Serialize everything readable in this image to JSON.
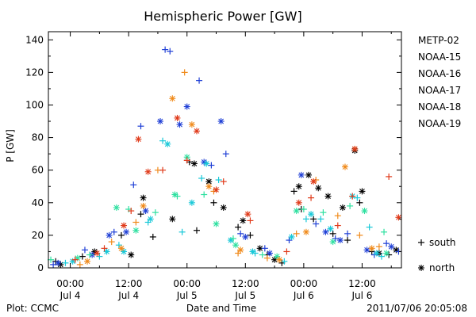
{
  "chart_data": {
    "type": "scatter",
    "title": "Hemispheric Power [GW]",
    "ylabel": "P [GW]",
    "xlabel": "Date and Time",
    "ylim": [
      0,
      145
    ],
    "yticks": [
      0,
      20,
      40,
      60,
      80,
      100,
      120,
      140
    ],
    "xlim": [
      "2011-07-03 19:30",
      "2011-07-06 20:05"
    ],
    "xtick_labels": [
      {
        "time": "00:00",
        "date": "Jul 4",
        "x": "2011-07-04 00:00"
      },
      {
        "time": "12:00",
        "date": "Jul 4",
        "x": "2011-07-04 12:00"
      },
      {
        "time": "00:00",
        "date": "Jul 5",
        "x": "2011-07-05 00:00"
      },
      {
        "time": "12:00",
        "date": "Jul 5",
        "x": "2011-07-05 12:00"
      },
      {
        "time": "00:00",
        "date": "Jul 6",
        "x": "2011-07-06 00:00"
      },
      {
        "time": "12:00",
        "date": "Jul 6",
        "x": "2011-07-06 12:00"
      }
    ],
    "legend": {
      "placement": "right",
      "entries": [
        {
          "name": "METP-02",
          "color": "#000000"
        },
        {
          "name": "NOAA-15",
          "color": "#1f3fd6"
        },
        {
          "name": "NOAA-16",
          "color": "#18c8d8"
        },
        {
          "name": "NOAA-17",
          "color": "#2ee0a0"
        },
        {
          "name": "NOAA-18",
          "color": "#f08a1a"
        },
        {
          "name": "NOAA-19",
          "color": "#e03a1a"
        }
      ],
      "markers": [
        {
          "symbol": "+",
          "label": "south"
        },
        {
          "symbol": "*",
          "label": "north"
        }
      ]
    },
    "series": [
      {
        "name": "METP-02",
        "color": "#000000",
        "marker": "+",
        "hemisphere": "south",
        "points": [
          [
            "2011-07-03 21:00",
            4
          ],
          [
            "2011-07-04 02:30",
            7
          ],
          [
            "2011-07-04 10:30",
            20
          ],
          [
            "2011-07-04 14:30",
            33
          ],
          [
            "2011-07-04 17:00",
            19
          ],
          [
            "2011-07-05 00:30",
            65
          ],
          [
            "2011-07-05 02:00",
            23
          ],
          [
            "2011-07-05 05:30",
            40
          ],
          [
            "2011-07-05 10:30",
            25
          ],
          [
            "2011-07-05 13:00",
            20
          ],
          [
            "2011-07-05 16:30",
            8
          ],
          [
            "2011-07-05 19:30",
            3
          ],
          [
            "2011-07-05 22:00",
            47
          ],
          [
            "2011-07-05 23:30",
            36
          ],
          [
            "2011-07-06 02:00",
            30
          ],
          [
            "2011-07-06 06:00",
            21
          ],
          [
            "2011-07-06 09:00",
            17
          ],
          [
            "2011-07-06 11:30",
            40
          ],
          [
            "2011-07-06 14:00",
            10
          ],
          [
            "2011-07-06 17:30",
            8
          ]
        ]
      },
      {
        "name": "METP-02",
        "color": "#000000",
        "marker": "*",
        "hemisphere": "north",
        "points": [
          [
            "2011-07-03 22:00",
            2
          ],
          [
            "2011-07-04 05:00",
            10
          ],
          [
            "2011-07-04 12:30",
            8
          ],
          [
            "2011-07-04 15:00",
            43
          ],
          [
            "2011-07-04 21:00",
            30
          ],
          [
            "2011-07-05 01:30",
            64
          ],
          [
            "2011-07-05 04:30",
            53
          ],
          [
            "2011-07-05 07:30",
            37
          ],
          [
            "2011-07-05 11:30",
            29
          ],
          [
            "2011-07-05 15:00",
            12
          ],
          [
            "2011-07-05 18:00",
            5
          ],
          [
            "2011-07-05 23:00",
            50
          ],
          [
            "2011-07-06 01:00",
            57
          ],
          [
            "2011-07-06 03:00",
            49
          ],
          [
            "2011-07-06 05:00",
            44
          ],
          [
            "2011-07-06 08:00",
            37
          ],
          [
            "2011-07-06 10:30",
            72
          ],
          [
            "2011-07-06 12:00",
            47
          ],
          [
            "2011-07-06 15:30",
            9
          ],
          [
            "2011-07-06 19:00",
            11
          ]
        ]
      },
      {
        "name": "NOAA-15",
        "color": "#1f3fd6",
        "marker": "+",
        "hemisphere": "south",
        "points": [
          [
            "2011-07-03 20:30",
            2
          ],
          [
            "2011-07-04 03:00",
            11
          ],
          [
            "2011-07-04 09:00",
            22
          ],
          [
            "2011-07-04 13:00",
            51
          ],
          [
            "2011-07-04 14:30",
            87
          ],
          [
            "2011-07-04 19:30",
            134
          ],
          [
            "2011-07-04 20:30",
            133
          ],
          [
            "2011-07-05 02:30",
            115
          ],
          [
            "2011-07-05 05:00",
            63
          ],
          [
            "2011-07-05 08:00",
            70
          ],
          [
            "2011-07-05 11:00",
            21
          ],
          [
            "2011-07-05 16:00",
            12
          ],
          [
            "2011-07-05 21:00",
            17
          ],
          [
            "2011-07-06 02:30",
            27
          ],
          [
            "2011-07-06 06:30",
            18
          ],
          [
            "2011-07-06 09:00",
            21
          ],
          [
            "2011-07-06 14:30",
            8
          ],
          [
            "2011-07-06 17:00",
            15
          ],
          [
            "2011-07-06 19:30",
            10
          ]
        ]
      },
      {
        "name": "NOAA-15",
        "color": "#1f3fd6",
        "marker": "*",
        "hemisphere": "north",
        "points": [
          [
            "2011-07-03 21:30",
            3
          ],
          [
            "2011-07-04 04:30",
            8
          ],
          [
            "2011-07-04 08:00",
            20
          ],
          [
            "2011-07-04 11:30",
            22
          ],
          [
            "2011-07-04 15:30",
            35
          ],
          [
            "2011-07-04 18:30",
            90
          ],
          [
            "2011-07-04 22:30",
            88
          ],
          [
            "2011-07-05 00:00",
            99
          ],
          [
            "2011-07-05 03:30",
            65
          ],
          [
            "2011-07-05 07:00",
            90
          ],
          [
            "2011-07-05 12:00",
            19
          ],
          [
            "2011-07-05 17:00",
            9
          ],
          [
            "2011-07-05 23:30",
            57
          ],
          [
            "2011-07-06 04:30",
            22
          ],
          [
            "2011-07-06 07:30",
            17
          ],
          [
            "2011-07-06 13:00",
            11
          ],
          [
            "2011-07-06 18:00",
            13
          ]
        ]
      },
      {
        "name": "NOAA-16",
        "color": "#18c8d8",
        "marker": "+",
        "hemisphere": "south",
        "points": [
          [
            "2011-07-03 23:00",
            3
          ],
          [
            "2011-07-04 06:00",
            7
          ],
          [
            "2011-07-04 10:00",
            14
          ],
          [
            "2011-07-04 16:00",
            28
          ],
          [
            "2011-07-04 19:00",
            78
          ],
          [
            "2011-07-04 23:00",
            22
          ],
          [
            "2011-07-05 03:00",
            55
          ],
          [
            "2011-07-05 06:30",
            54
          ],
          [
            "2011-07-05 14:00",
            9
          ],
          [
            "2011-07-05 20:00",
            4
          ],
          [
            "2011-07-06 00:30",
            30
          ],
          [
            "2011-07-06 03:30",
            30
          ],
          [
            "2011-07-06 11:00",
            43
          ],
          [
            "2011-07-06 13:30",
            25
          ],
          [
            "2011-07-06 16:00",
            7
          ]
        ]
      },
      {
        "name": "NOAA-16",
        "color": "#18c8d8",
        "marker": "*",
        "hemisphere": "north",
        "points": [
          [
            "2011-07-04 00:30",
            4
          ],
          [
            "2011-07-04 07:30",
            10
          ],
          [
            "2011-07-04 11:00",
            10
          ],
          [
            "2011-07-04 16:30",
            30
          ],
          [
            "2011-07-04 20:00",
            76
          ],
          [
            "2011-07-05 01:00",
            40
          ],
          [
            "2011-07-05 04:00",
            64
          ],
          [
            "2011-07-05 09:00",
            17
          ],
          [
            "2011-07-05 13:30",
            10
          ],
          [
            "2011-07-05 21:30",
            19
          ],
          [
            "2011-07-06 01:30",
            33
          ],
          [
            "2011-07-06 05:30",
            24
          ],
          [
            "2011-07-06 10:00",
            44
          ],
          [
            "2011-07-06 15:00",
            9
          ]
        ]
      },
      {
        "name": "NOAA-17",
        "color": "#2ee0a0",
        "marker": "+",
        "hemisphere": "south",
        "points": [
          [
            "2011-07-03 20:00",
            5
          ],
          [
            "2011-07-04 04:00",
            8
          ],
          [
            "2011-07-04 12:00",
            36
          ],
          [
            "2011-07-04 17:30",
            34
          ],
          [
            "2011-07-04 22:00",
            44
          ],
          [
            "2011-07-05 03:30",
            45
          ],
          [
            "2011-07-05 09:30",
            18
          ],
          [
            "2011-07-05 15:30",
            8
          ],
          [
            "2011-07-06 00:00",
            36
          ],
          [
            "2011-07-06 04:00",
            34
          ],
          [
            "2011-07-06 09:30",
            38
          ],
          [
            "2011-07-06 16:30",
            22
          ]
        ]
      },
      {
        "name": "NOAA-17",
        "color": "#2ee0a0",
        "marker": "*",
        "hemisphere": "north",
        "points": [
          [
            "2011-07-04 01:30",
            6
          ],
          [
            "2011-07-04 09:30",
            37
          ],
          [
            "2011-07-04 13:30",
            23
          ],
          [
            "2011-07-04 21:30",
            45
          ],
          [
            "2011-07-05 00:00",
            68
          ],
          [
            "2011-07-05 06:00",
            27
          ],
          [
            "2011-07-05 10:00",
            14
          ],
          [
            "2011-07-05 18:30",
            7
          ],
          [
            "2011-07-05 22:30",
            35
          ],
          [
            "2011-07-06 06:00",
            16
          ],
          [
            "2011-07-06 12:30",
            35
          ],
          [
            "2011-07-06 17:00",
            9
          ]
        ]
      },
      {
        "name": "NOAA-18",
        "color": "#f08a1a",
        "marker": "+",
        "hemisphere": "south",
        "points": [
          [
            "2011-07-04 02:00",
            2
          ],
          [
            "2011-07-04 08:30",
            16
          ],
          [
            "2011-07-04 13:30",
            28
          ],
          [
            "2011-07-04 18:00",
            60
          ],
          [
            "2011-07-04 23:30",
            120
          ],
          [
            "2011-07-05 05:30",
            47
          ],
          [
            "2011-07-05 10:30",
            9
          ],
          [
            "2011-07-05 16:30",
            6
          ],
          [
            "2011-07-05 22:30",
            21
          ],
          [
            "2011-07-06 02:30",
            54
          ],
          [
            "2011-07-06 07:00",
            32
          ],
          [
            "2011-07-06 11:30",
            20
          ],
          [
            "2011-07-06 15:30",
            13
          ]
        ]
      },
      {
        "name": "NOAA-18",
        "color": "#f08a1a",
        "marker": "*",
        "hemisphere": "north",
        "points": [
          [
            "2011-07-04 03:30",
            4
          ],
          [
            "2011-07-04 10:30",
            12
          ],
          [
            "2011-07-04 15:00",
            38
          ],
          [
            "2011-07-04 21:00",
            104
          ],
          [
            "2011-07-05 01:00",
            88
          ],
          [
            "2011-07-05 04:30",
            50
          ],
          [
            "2011-07-05 11:00",
            11
          ],
          [
            "2011-07-05 19:00",
            5
          ],
          [
            "2011-07-06 00:30",
            22
          ],
          [
            "2011-07-06 08:30",
            62
          ],
          [
            "2011-07-06 10:30",
            73
          ],
          [
            "2011-07-06 14:00",
            12
          ]
        ]
      },
      {
        "name": "NOAA-19",
        "color": "#e03a1a",
        "marker": "+",
        "hemisphere": "south",
        "points": [
          [
            "2011-07-04 01:00",
            5
          ],
          [
            "2011-07-04 07:00",
            12
          ],
          [
            "2011-07-04 12:30",
            35
          ],
          [
            "2011-07-04 19:00",
            60
          ],
          [
            "2011-07-05 00:00",
            66
          ],
          [
            "2011-07-05 07:30",
            53
          ],
          [
            "2011-07-05 13:00",
            29
          ],
          [
            "2011-07-05 20:30",
            10
          ],
          [
            "2011-07-06 01:30",
            43
          ],
          [
            "2011-07-06 07:00",
            26
          ],
          [
            "2011-07-06 10:00",
            44
          ],
          [
            "2011-07-06 17:30",
            56
          ]
        ]
      },
      {
        "name": "NOAA-19",
        "color": "#e03a1a",
        "marker": "*",
        "hemisphere": "north",
        "points": [
          [
            "2011-07-04 05:30",
            9
          ],
          [
            "2011-07-04 11:00",
            26
          ],
          [
            "2011-07-04 14:00",
            79
          ],
          [
            "2011-07-04 16:00",
            59
          ],
          [
            "2011-07-04 22:00",
            92
          ],
          [
            "2011-07-05 02:00",
            84
          ],
          [
            "2011-07-05 06:00",
            48
          ],
          [
            "2011-07-05 12:30",
            33
          ],
          [
            "2011-07-05 23:00",
            40
          ],
          [
            "2011-07-06 02:00",
            53
          ],
          [
            "2011-07-06 10:30",
            73
          ],
          [
            "2011-07-06 19:30",
            31
          ]
        ]
      }
    ]
  },
  "footer": {
    "left": "Plot: CCMC",
    "right": "2011/07/06 20:05:08"
  }
}
